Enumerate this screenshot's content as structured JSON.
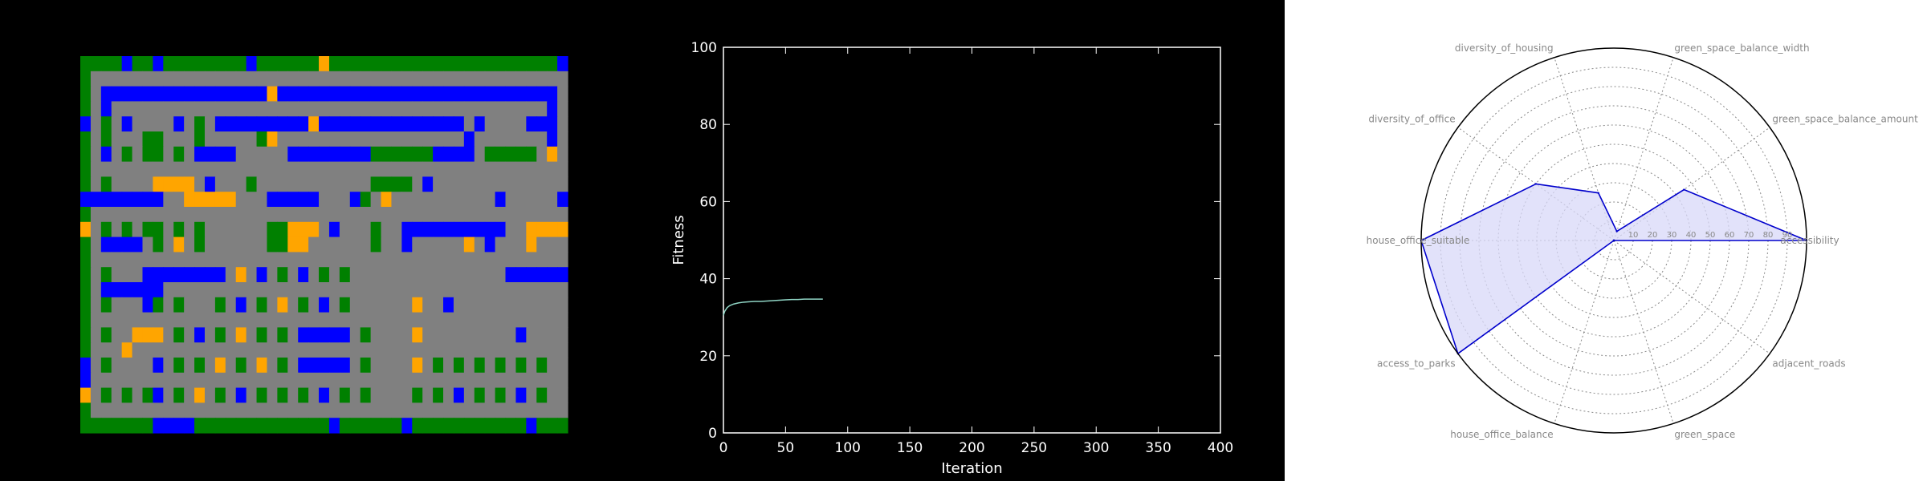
{
  "colors": {
    "road": "#808080",
    "green": "#008000",
    "housing": "#0000ff",
    "office": "#ffa500",
    "background": "#000000",
    "line": "#8fd4c4",
    "radar_edge": "#0000cc",
    "radar_fill": "#d8d8f8"
  },
  "grid_map": {
    "legend": {
      "G": "road",
      "P": "green",
      "H": "housing",
      "O": "office"
    },
    "rows": [
      "PPPPHPPHPPPPPPPPHPPPPPPOPPPPPPPPPPPPPPPPPPPPPPH",
      "PGGGGGGGGGGGGGGGGGGGGGGGGGGGGGGGGGGGGGGGGGGGGGG",
      "PGHHHHHHHHHHHHHHHHOHHHHHHHHHHHHHHHHHHHHHHHHHHHG",
      "PGHGGGGGGGGGGGGGGGGGGGGGGGGGGGGGGGGGGGGGGGGGGHG",
      "HGPGHGGGGHGPGHHHHHHHHHOHHHHHHHHHHHHHHGHGGGGHHHG",
      "PGPGGGPPGGGPGGGGGPOGGGGGGGGGGGGGGGGGGHGGGGGGGHG",
      "PGHGPGPPGPGHHHHGGGGGHHHHHHHHPPPPPPHHHHGPPPPPGOG",
      "PGGGGGGGGGGGGGGGGGGGGGGGGGGGGGGGGGGGGGGGGGGGGGG",
      "PGPGGGGOOOOGHGGGPGGGGGGGGGGGPPPPGHGGGGGGGGGGGGG",
      "HHHHHHHHGGOOOOOGGGHHHHHGGGHPGOGGGGGGGGGGHGGGGGH",
      "PGGGGGGGGGGGGGGGGGGGGGGGGGGGGGGGGGGGGGGGGGGGGGG",
      "OGPGPGPPGPGPGGGGGGPPOOOGHGGGPGGHHHHHHHHHHGGOOOO",
      "PGHHHHGPGOGPGGGGGGPPOOGGGGGGPGGHGGGGGOGHGGGOGGG",
      "PGGGGGGGGGGGGGGGGGGGGGGGGGGGGGGGGGGGGGGGGGGGGGG",
      "PGPGGGHHHHHHHHGOGHGPGHGPGPGGGGGGGGGGGGGGGHHHHHH",
      "PGHHHHHHGGGGGGGGGGGGGGGGGGGGGGGGGGGGGGGGGGGGGGG",
      "PGPGGGHPGPGGGPGHGPGOGPGHGPGGGGGGOGGHGGGGGGGGGGG",
      "PGGGGGGGGGGGGGGGGGGGGGGGGGGGGGGGGGGGGGGGGGGGGGG",
      "PGPGGOOOGPGHGPGOGPGPGHHHHHGPGGGGOGGGGGGGGGHGGGG",
      "PGGGOGGGGGGGGGGGGGGGGGGGGGGGGGGGGGGGGGGGGGGGGGG",
      "HGPGGGGHGPGPGOGPGOGPGHHHHHGPGGGGOGPGPGPGPGPGPGG",
      "HGGGGGGGGGGGGGGGGGGGGGGGGGGGGGGGGGGGGGGGGGGGGGG",
      "OGPGPGPHGPGOGPGHGPGPGPGHGPGPGGGGPGPGHGPGPGHGPGG",
      "PGGGGGGGGGGGGGGGGGGGGGGGGGGGGGGGGGGGGGGGGGGGGGG",
      "PPPPPPPHHHHPPPPPPPPPPPPPHPPPPPPHPPPPPPPPPPPHPPP"
    ]
  },
  "chart_data": [
    {
      "type": "line",
      "title": "",
      "xlabel": "Iteration",
      "ylabel": "Fitness",
      "xlim": [
        0,
        400
      ],
      "ylim": [
        0,
        100
      ],
      "xticks": [
        0,
        50,
        100,
        150,
        200,
        250,
        300,
        350,
        400
      ],
      "yticks": [
        0,
        20,
        40,
        60,
        80,
        100
      ],
      "grid": false,
      "series": [
        {
          "x": [
            0,
            1,
            2,
            3,
            5,
            8,
            12,
            16,
            20,
            25,
            30,
            35,
            40,
            45,
            50,
            55,
            60,
            65,
            70,
            75,
            80
          ],
          "y": [
            30.5,
            31.5,
            32.0,
            32.5,
            33.0,
            33.4,
            33.7,
            33.9,
            34.0,
            34.1,
            34.1,
            34.2,
            34.3,
            34.4,
            34.5,
            34.6,
            34.6,
            34.7,
            34.7,
            34.7,
            34.7
          ]
        }
      ]
    },
    {
      "type": "radar",
      "title": "",
      "rlim": [
        0,
        100
      ],
      "radial_ticks": [
        10,
        20,
        30,
        40,
        50,
        60,
        70,
        80,
        90
      ],
      "grid": true,
      "categories": [
        "accessibility",
        "green_space_balance_amount",
        "green_space_balance_width",
        "diversity_of_housing",
        "diversity_of_office",
        "house_office_suitable",
        "access_to_parks",
        "house_office_balance",
        "green_space",
        "adjacent_roads"
      ],
      "values": [
        100,
        45,
        5,
        26,
        50,
        100,
        100,
        0,
        0,
        0
      ]
    }
  ]
}
